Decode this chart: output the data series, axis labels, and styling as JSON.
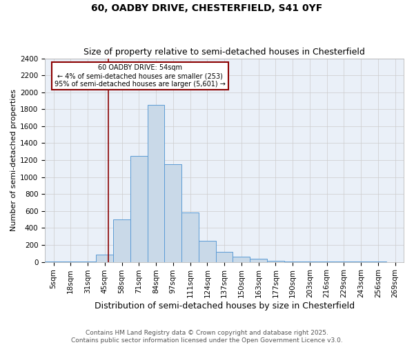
{
  "title_line1": "60, OADBY DRIVE, CHESTERFIELD, S41 0YF",
  "title_line2": "Size of property relative to semi-detached houses in Chesterfield",
  "xlabel": "Distribution of semi-detached houses by size in Chesterfield",
  "ylabel": "Number of semi-detached properties",
  "bins": [
    "5sqm",
    "18sqm",
    "31sqm",
    "45sqm",
    "58sqm",
    "71sqm",
    "84sqm",
    "97sqm",
    "111sqm",
    "124sqm",
    "137sqm",
    "150sqm",
    "163sqm",
    "177sqm",
    "190sqm",
    "203sqm",
    "216sqm",
    "229sqm",
    "243sqm",
    "256sqm",
    "269sqm"
  ],
  "bar_heights": [
    2,
    2,
    2,
    90,
    500,
    1250,
    1850,
    1150,
    580,
    250,
    120,
    65,
    35,
    15,
    5,
    5,
    2,
    2,
    1,
    1,
    0
  ],
  "bar_color": "#c9d9e8",
  "bar_edge_color": "#5b9bd5",
  "annotation_box_text": "60 OADBY DRIVE: 54sqm\n← 4% of semi-detached houses are smaller (253)\n95% of semi-detached houses are larger (5,601) →",
  "vline_color": "#8b0000",
  "ylim": [
    0,
    2400
  ],
  "yticks": [
    0,
    200,
    400,
    600,
    800,
    1000,
    1200,
    1400,
    1600,
    1800,
    2000,
    2200,
    2400
  ],
  "grid_color": "#cccccc",
  "bg_color": "#eaf0f8",
  "footer": "Contains HM Land Registry data © Crown copyright and database right 2025.\nContains public sector information licensed under the Open Government Licence v3.0.",
  "annotation_box_color": "white",
  "annotation_box_edge_color": "#8b0000",
  "title_fontsize": 10,
  "subtitle_fontsize": 9,
  "xlabel_fontsize": 9,
  "ylabel_fontsize": 8,
  "tick_fontsize": 7.5,
  "footer_fontsize": 6.5
}
